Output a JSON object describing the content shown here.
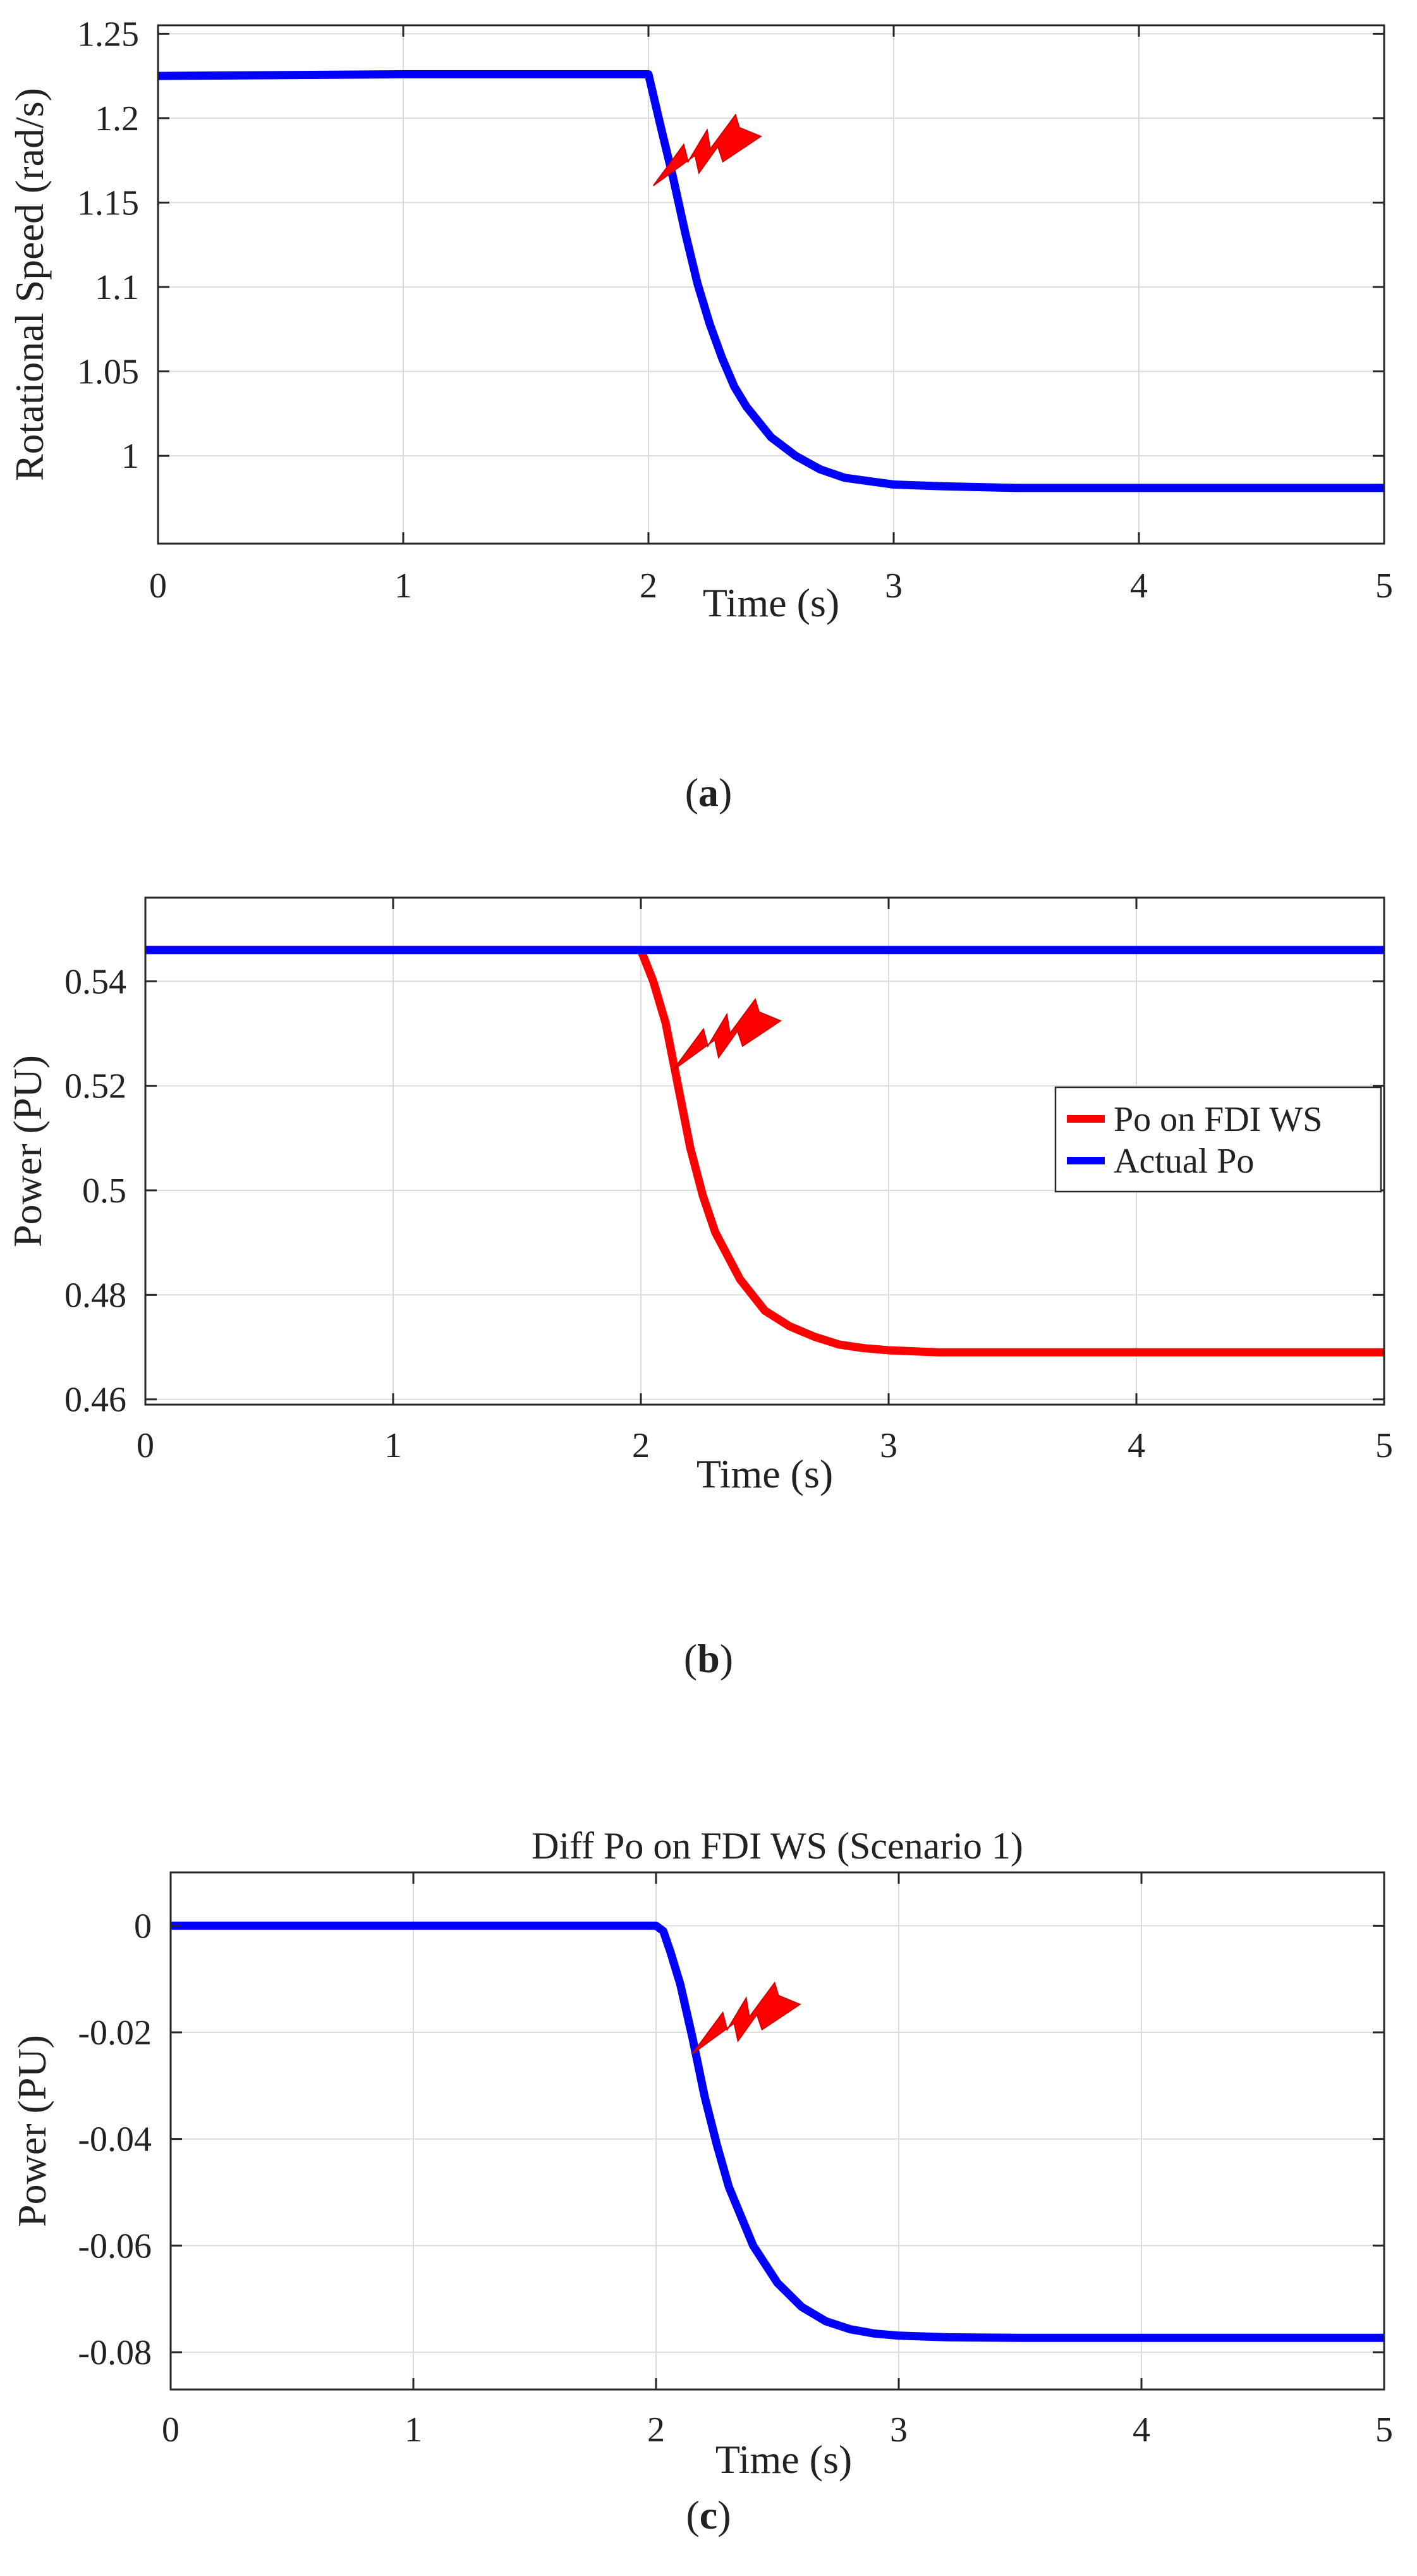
{
  "chart_data": [
    {
      "type": "line",
      "title": "",
      "xlabel": "Time (s)",
      "ylabel": "Rotational Speed (rad/s)",
      "xlim": [
        0,
        5
      ],
      "ylim": [
        0.948,
        1.255
      ],
      "xticks": [
        0,
        1,
        2,
        3,
        4,
        5
      ],
      "yticks": [
        1,
        1.05,
        1.1,
        1.15,
        1.2,
        1.25
      ],
      "grid": true,
      "legend": null,
      "caption": {
        "open": "(",
        "letter": "a",
        "close": ")"
      },
      "annotations": [
        {
          "type": "fault-lightning",
          "x": 2.02,
          "y": 1.16
        }
      ],
      "series": [
        {
          "name": "Rotational Speed",
          "color": "#0000ff",
          "x": [
            0,
            1,
            2,
            2.05,
            2.1,
            2.15,
            2.2,
            2.25,
            2.3,
            2.35,
            2.4,
            2.5,
            2.6,
            2.7,
            2.8,
            2.9,
            3,
            3.2,
            3.5,
            4,
            4.5,
            5
          ],
          "values": [
            1.225,
            1.226,
            1.226,
            1.195,
            1.165,
            1.132,
            1.102,
            1.078,
            1.058,
            1.041,
            1.029,
            1.011,
            1.0,
            0.992,
            0.987,
            0.985,
            0.983,
            0.982,
            0.981,
            0.981,
            0.981,
            0.981
          ]
        }
      ]
    },
    {
      "type": "line",
      "title": "",
      "xlabel": "Time (s)",
      "ylabel": "Power (PU)",
      "xlim": [
        0,
        5
      ],
      "ylim": [
        0.459,
        0.556
      ],
      "xticks": [
        0,
        1,
        2,
        3,
        4,
        5
      ],
      "yticks": [
        0.46,
        0.48,
        0.5,
        0.52,
        0.54
      ],
      "grid": true,
      "legend": "right",
      "caption": {
        "open": "(",
        "letter": "b",
        "close": ")"
      },
      "annotations": [
        {
          "type": "fault-lightning",
          "x": 2.13,
          "y": 0.523
        }
      ],
      "series": [
        {
          "name": "Po on FDI WS",
          "color": "#ff0000",
          "x": [
            0,
            2,
            2.05,
            2.1,
            2.15,
            2.2,
            2.25,
            2.3,
            2.4,
            2.5,
            2.6,
            2.7,
            2.8,
            2.9,
            3,
            3.2,
            3.5,
            4,
            4.5,
            5
          ],
          "values": [
            0.546,
            0.546,
            0.54,
            0.532,
            0.52,
            0.508,
            0.499,
            0.492,
            0.483,
            0.477,
            0.474,
            0.472,
            0.4705,
            0.4698,
            0.4694,
            0.469,
            0.469,
            0.469,
            0.469,
            0.469
          ]
        },
        {
          "name": "Actual Po",
          "color": "#0000ff",
          "x": [
            0,
            5
          ],
          "values": [
            0.546,
            0.546
          ]
        }
      ]
    },
    {
      "type": "line",
      "title": "Diff Po on FDI WS (Scenario 1)",
      "xlabel": "Time (s)",
      "ylabel": "Power (PU)",
      "xlim": [
        0,
        5
      ],
      "ylim": [
        -0.087,
        0.01
      ],
      "xticks": [
        0,
        1,
        2,
        3,
        4,
        5
      ],
      "yticks": [
        -0.08,
        -0.06,
        -0.04,
        -0.02,
        0
      ],
      "grid": true,
      "legend": null,
      "caption": {
        "open": "(",
        "letter": "c",
        "close": ")"
      },
      "annotations": [
        {
          "type": "fault-lightning",
          "x": 2.15,
          "y": -0.024
        }
      ],
      "series": [
        {
          "name": "Diff Po",
          "color": "#0000ff",
          "x": [
            0,
            1,
            2,
            2.03,
            2.06,
            2.1,
            2.15,
            2.2,
            2.25,
            2.3,
            2.4,
            2.5,
            2.6,
            2.7,
            2.8,
            2.9,
            3,
            3.2,
            3.5,
            4,
            4.5,
            5
          ],
          "values": [
            0,
            0,
            0,
            -0.001,
            -0.005,
            -0.011,
            -0.021,
            -0.032,
            -0.041,
            -0.049,
            -0.06,
            -0.067,
            -0.0715,
            -0.0742,
            -0.0757,
            -0.0765,
            -0.0769,
            -0.0772,
            -0.0773,
            -0.0773,
            -0.0773,
            -0.0773
          ]
        }
      ]
    }
  ]
}
